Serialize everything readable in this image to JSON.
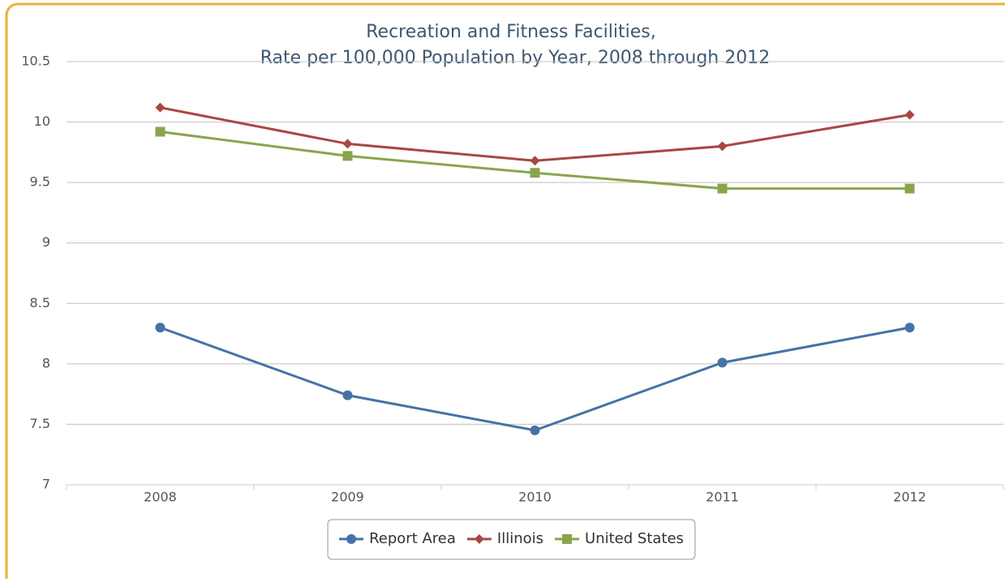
{
  "chart_data": {
    "type": "line",
    "title": [
      "Recreation and Fitness Facilities,",
      "Rate per 100,000 Population by Year, 2008 through 2012"
    ],
    "categories": [
      "2008",
      "2009",
      "2010",
      "2011",
      "2012"
    ],
    "series": [
      {
        "name": "Report Area",
        "color": "#4572a7",
        "marker": "circle",
        "values": [
          8.3,
          7.74,
          7.45,
          8.01,
          8.3
        ]
      },
      {
        "name": "Illinois",
        "color": "#aa4643",
        "marker": "diamond",
        "values": [
          10.12,
          9.82,
          9.68,
          9.8,
          10.06
        ]
      },
      {
        "name": "United States",
        "color": "#89a54e",
        "marker": "square",
        "values": [
          9.92,
          9.72,
          9.58,
          9.45,
          9.45
        ]
      }
    ],
    "ylim": [
      7,
      10.5
    ],
    "yticks": [
      7,
      7.5,
      8,
      8.5,
      9,
      9.5,
      10,
      10.5
    ],
    "grid": true,
    "legend": "bottom"
  }
}
